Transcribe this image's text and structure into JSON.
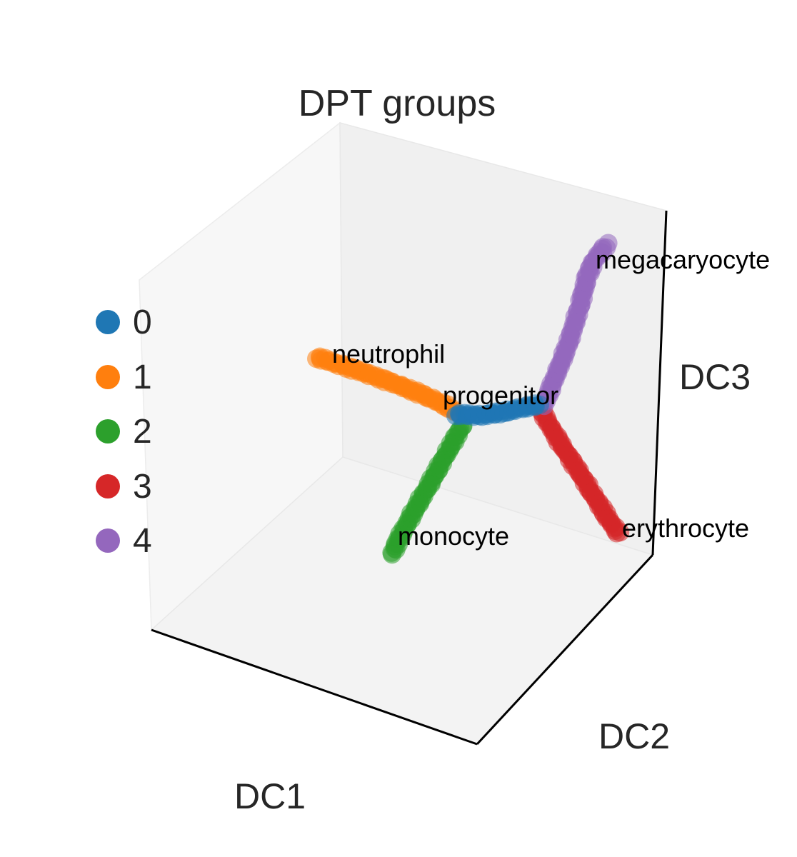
{
  "chart_data": {
    "type": "scatter",
    "projection": "3d",
    "title": "DPT groups",
    "xlabel": "DC1",
    "ylabel": "DC2",
    "zlabel": "DC3",
    "grid": false,
    "ticks": "none",
    "legend_position": "left",
    "legend": [
      {
        "label": "0",
        "color": "#1f77b4"
      },
      {
        "label": "1",
        "color": "#ff7f0e"
      },
      {
        "label": "2",
        "color": "#2ca02c"
      },
      {
        "label": "3",
        "color": "#d62728"
      },
      {
        "label": "4",
        "color": "#9467bd"
      }
    ],
    "branch_labels": [
      {
        "text": "progenitor",
        "group": "0"
      },
      {
        "text": "neutrophil",
        "group": "1"
      },
      {
        "text": "monocyte",
        "group": "2"
      },
      {
        "text": "erythrocyte",
        "group": "3"
      },
      {
        "text": "megacaryocyte",
        "group": "4"
      }
    ]
  }
}
